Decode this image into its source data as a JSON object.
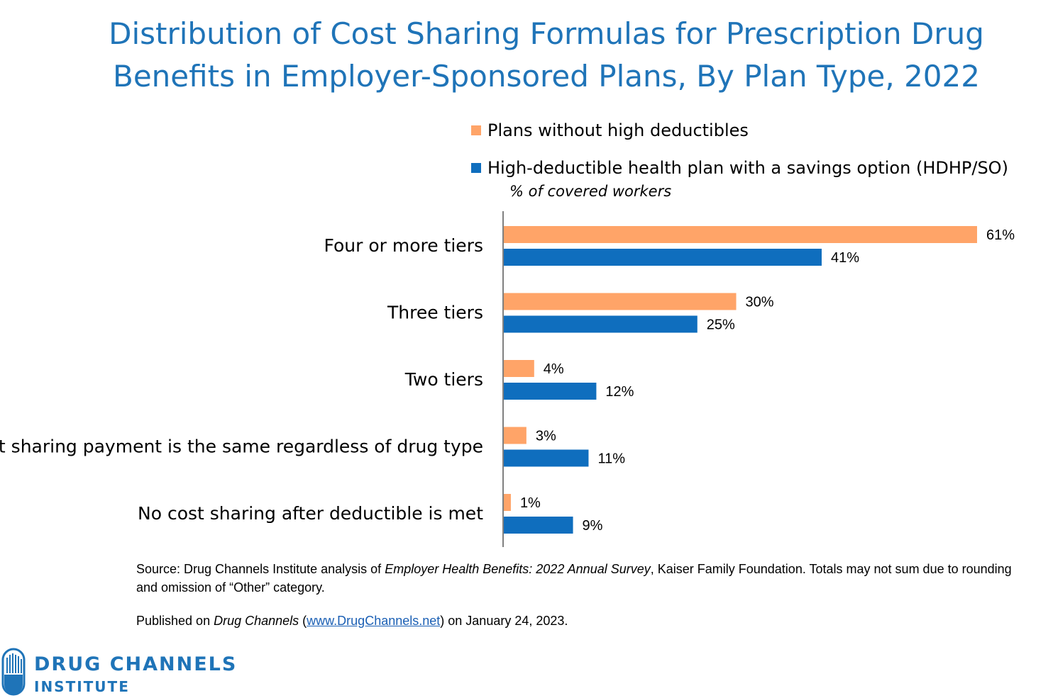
{
  "title": {
    "line1": "Distribution of Cost Sharing Formulas for Prescription Drug",
    "line2": "Benefits in Employer-Sponsored Plans, By Plan Type, 2022"
  },
  "unit_note": "% of covered workers",
  "chart_data": {
    "type": "bar",
    "orientation": "horizontal",
    "title": "Distribution of Cost Sharing Formulas for Prescription Drug Benefits in Employer-Sponsored Plans, By Plan Type, 2022",
    "xlabel": "% of covered workers",
    "ylabel": "",
    "xlim": [
      0,
      61
    ],
    "grid": false,
    "legend_position": "top-right",
    "categories": [
      "Four or more tiers",
      "Three tiers",
      "Two tiers",
      "Cost sharing payment is the same regardless of drug type",
      "No cost sharing after deductible is met"
    ],
    "series": [
      {
        "name": "Plans without high deductibles",
        "color": "#ffa468",
        "values": [
          61,
          30,
          4,
          3,
          1
        ],
        "labels": [
          "61%",
          "30%",
          "4%",
          "3%",
          "1%"
        ]
      },
      {
        "name": "High-deductible health plan with a savings option (HDHP/SO)",
        "color": "#0f6ebe",
        "values": [
          41,
          25,
          12,
          11,
          9
        ],
        "labels": [
          "41%",
          "25%",
          "12%",
          "11%",
          "9%"
        ]
      }
    ]
  },
  "footer": {
    "source_prefix": "Source: Drug Channels Institute analysis of ",
    "source_italic": "Employer Health Benefits: 2022 Annual Survey",
    "source_suffix": ", Kaiser Family Foundation. Totals may not sum due to rounding and omission of “Other” category.",
    "published_prefix": "Published on ",
    "published_italic": "Drug Channels",
    "published_open": " (",
    "published_link": "www.DrugChannels.net",
    "published_suffix": ") on January 24, 2023."
  },
  "logo": {
    "line1": "DRUG CHANNELS",
    "line2": "INSTITUTE",
    "color": "#1f74b8"
  }
}
